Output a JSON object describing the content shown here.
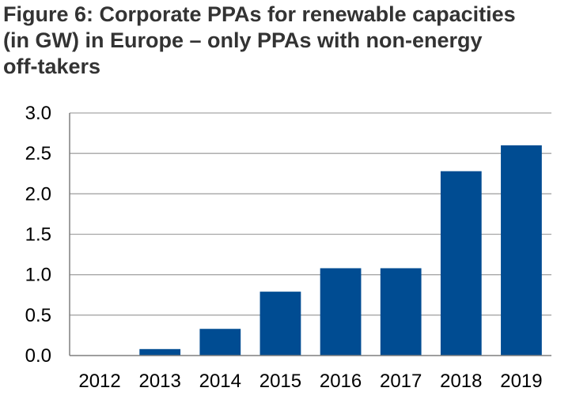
{
  "figure": {
    "title_lines": [
      "Figure 6: Corporate PPAs for renewable capacities",
      "(in GW) in Europe – only PPAs with non-energy",
      "off-takers"
    ]
  },
  "colors": {
    "bar": "#004C92",
    "grid": "#A6A6A6",
    "axis": "#7F7F7F",
    "title": "#333333"
  },
  "chart_data": {
    "type": "bar",
    "title": "Figure 6: Corporate PPAs for renewable capacities (in GW) in Europe – only PPAs with non-energy off-takers",
    "categories": [
      "2012",
      "2013",
      "2014",
      "2015",
      "2016",
      "2017",
      "2018",
      "2019"
    ],
    "values": [
      0.0,
      0.08,
      0.33,
      0.79,
      1.08,
      1.08,
      2.28,
      2.6
    ],
    "ylim": [
      0,
      3.0
    ],
    "yticks": [
      "0.0",
      "0.5",
      "1.0",
      "1.5",
      "2.0",
      "2.5",
      "3.0"
    ],
    "grid": true,
    "legend": "none"
  }
}
